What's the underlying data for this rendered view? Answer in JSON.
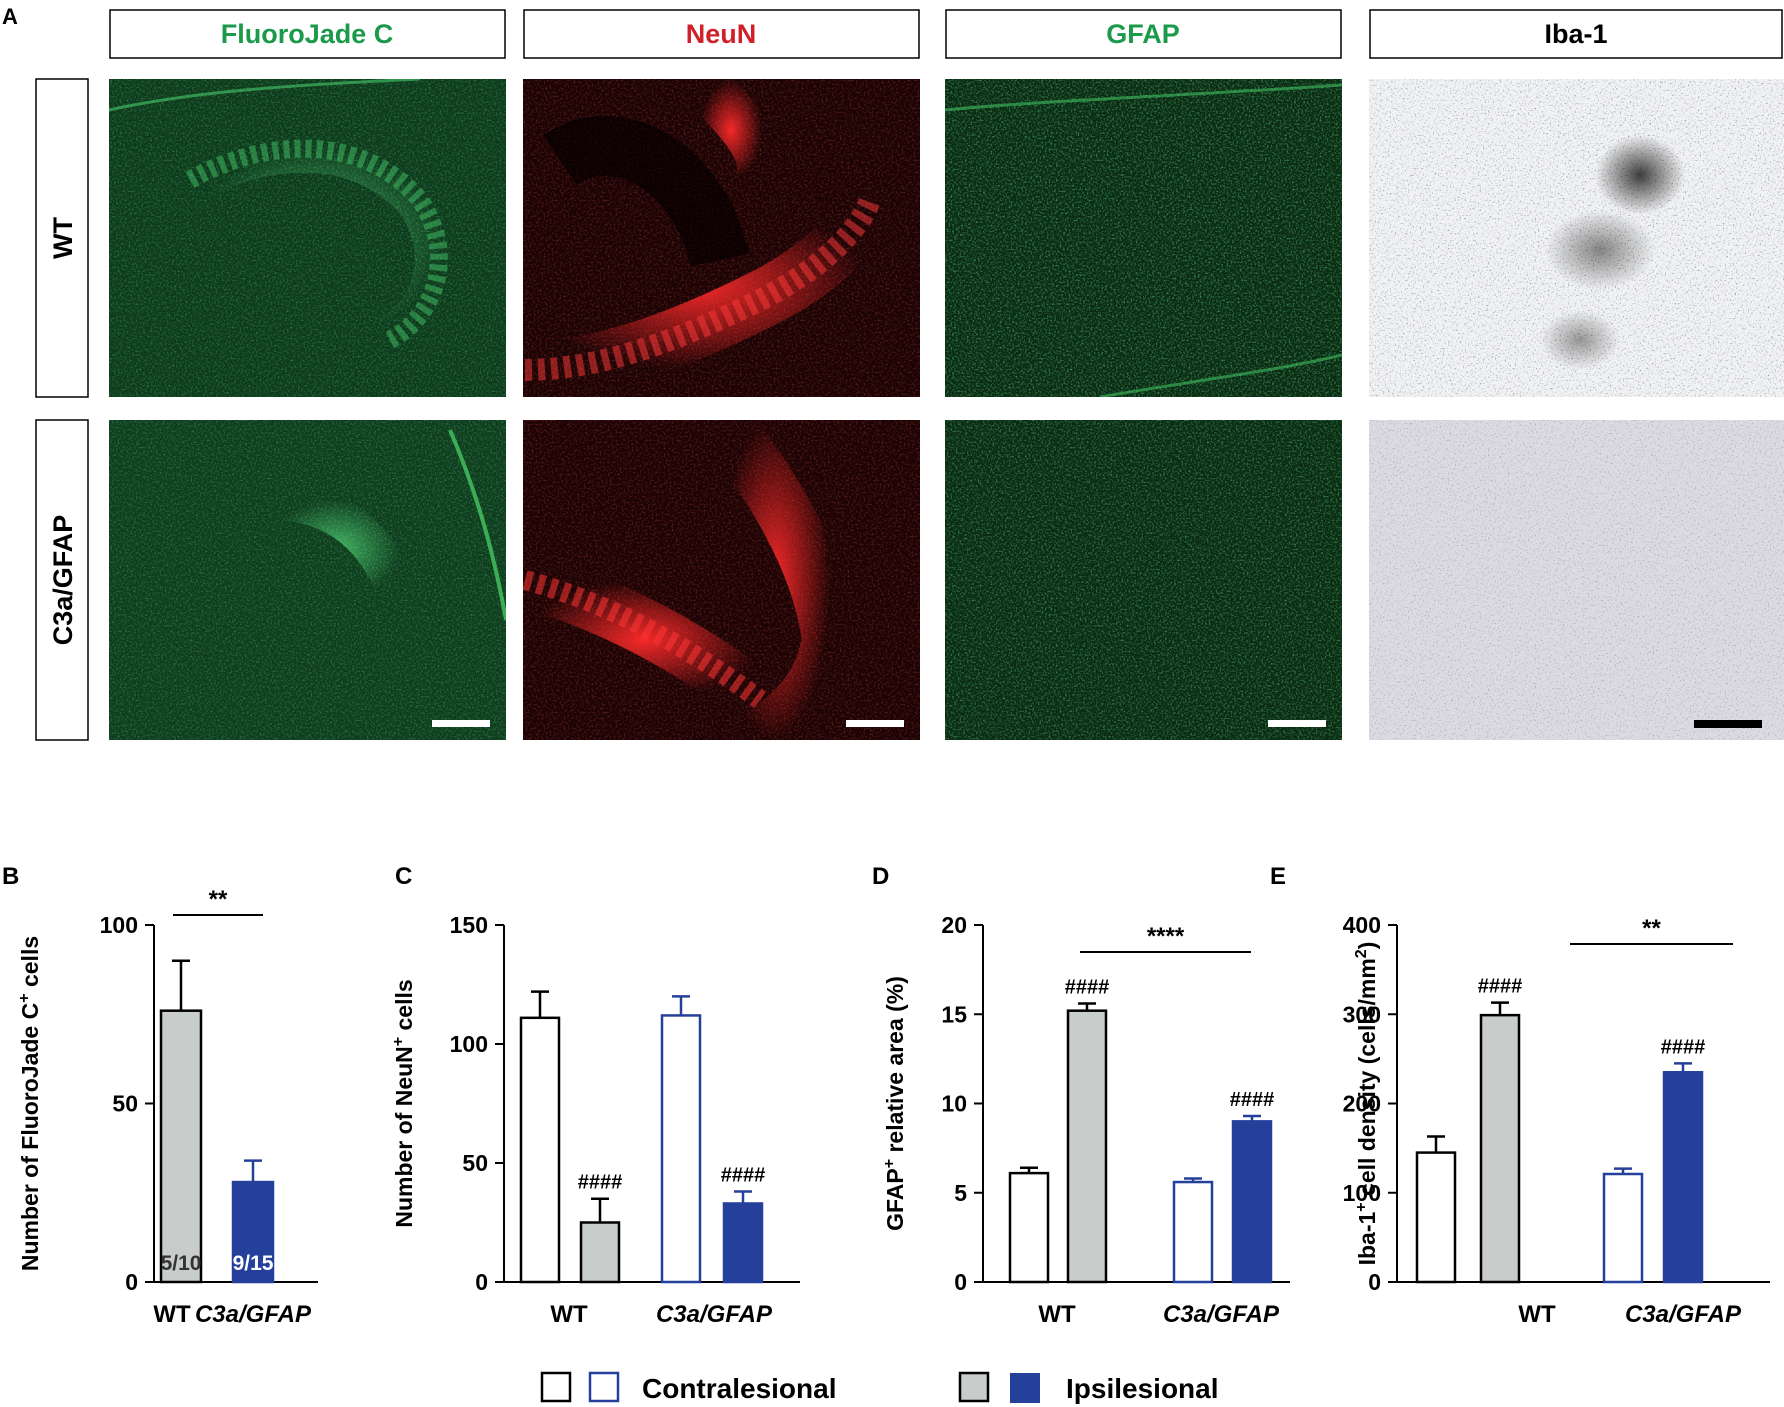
{
  "colors": {
    "contra_wt": "#ffffff",
    "contra_tg": "#ffffff",
    "ipsi_wt": "#c8cccb",
    "ipsi_tg": "#25409a",
    "stroke_wt": "#000000",
    "stroke_tg": "#25409a",
    "fluorojade": "#1a9a4a",
    "neun": "#d0202a",
    "gfap": "#1a9a4a",
    "iba1": "#000000"
  },
  "panel_a": {
    "letter": "A",
    "columns": [
      {
        "label": "FluoroJade C",
        "color_key": "fluorojade"
      },
      {
        "label": "NeuN",
        "color_key": "neun"
      },
      {
        "label": "GFAP",
        "color_key": "gfap"
      },
      {
        "label": "Iba-1",
        "color_key": "iba1"
      }
    ],
    "rows": [
      {
        "label": "WT"
      },
      {
        "label": "C3a/GFAP"
      }
    ]
  },
  "legend": {
    "contralesional": "Contralesional",
    "ipsilesional": "Ipsilesional"
  },
  "chart_data": [
    {
      "panel": "B",
      "type": "bar",
      "ylabel_main": "Number of FluoroJade C",
      "ylabel_sup": "+",
      "ylabel_tail": " cells",
      "ylim": [
        0,
        100
      ],
      "yticks": [
        "0",
        "50",
        "100"
      ],
      "groups": [
        "WT",
        "C3a/GFAP"
      ],
      "bars": [
        {
          "group": "WT",
          "value": 76,
          "error": 14,
          "kind": "ipsi_wt",
          "inner_label": "5/10"
        },
        {
          "group": "C3a/GFAP",
          "value": 28,
          "error": 6,
          "kind": "ipsi_tg",
          "inner_label": "9/15"
        }
      ],
      "significance": "**"
    },
    {
      "panel": "C",
      "type": "bar",
      "ylabel_main": "Number of NeuN",
      "ylabel_sup": "+",
      "ylabel_tail": " cells",
      "ylim": [
        0,
        150
      ],
      "yticks": [
        "0",
        "50",
        "100",
        "150"
      ],
      "groups": [
        "WT",
        "C3a/GFAP"
      ],
      "bars": [
        {
          "group": "WT",
          "value": 111,
          "error": 11,
          "kind": "contra_wt"
        },
        {
          "group": "WT",
          "value": 25,
          "error": 10,
          "kind": "ipsi_wt",
          "mark": "####"
        },
        {
          "group": "C3a/GFAP",
          "value": 112,
          "error": 8,
          "kind": "contra_tg"
        },
        {
          "group": "C3a/GFAP",
          "value": 33,
          "error": 5,
          "kind": "ipsi_tg",
          "mark": "####"
        }
      ]
    },
    {
      "panel": "D",
      "type": "bar",
      "ylabel_main": "GFAP",
      "ylabel_sup": "+",
      "ylabel_tail": " relative area (%)",
      "ylim": [
        0,
        20
      ],
      "yticks": [
        "0",
        "5",
        "10",
        "15",
        "20"
      ],
      "groups": [
        "WT",
        "C3a/GFAP"
      ],
      "bars": [
        {
          "group": "WT",
          "value": 6.1,
          "error": 0.3,
          "kind": "contra_wt"
        },
        {
          "group": "WT",
          "value": 15.2,
          "error": 0.4,
          "kind": "ipsi_wt",
          "mark": "####"
        },
        {
          "group": "C3a/GFAP",
          "value": 5.6,
          "error": 0.2,
          "kind": "contra_tg"
        },
        {
          "group": "C3a/GFAP",
          "value": 9.0,
          "error": 0.3,
          "kind": "ipsi_tg",
          "mark": "####"
        }
      ],
      "significance": "****"
    },
    {
      "panel": "E",
      "type": "bar",
      "ylabel_main": "Iba-1",
      "ylabel_sup": "+",
      "ylabel_tail": " cell density (cells/mm",
      "ylabel_sup2": "2",
      "ylabel_end": ")",
      "ylim": [
        0,
        400
      ],
      "yticks": [
        "0",
        "100",
        "200",
        "300",
        "400"
      ],
      "groups": [
        "WT",
        "C3a/GFAP"
      ],
      "bars": [
        {
          "group": "WT",
          "value": 145,
          "error": 18,
          "kind": "contra_wt"
        },
        {
          "group": "WT",
          "value": 299,
          "error": 14,
          "kind": "ipsi_wt",
          "mark": "####"
        },
        {
          "group": "C3a/GFAP",
          "value": 121,
          "error": 6,
          "kind": "contra_tg"
        },
        {
          "group": "C3a/GFAP",
          "value": 235,
          "error": 10,
          "kind": "ipsi_tg",
          "mark": "####"
        }
      ],
      "significance": "**"
    }
  ]
}
